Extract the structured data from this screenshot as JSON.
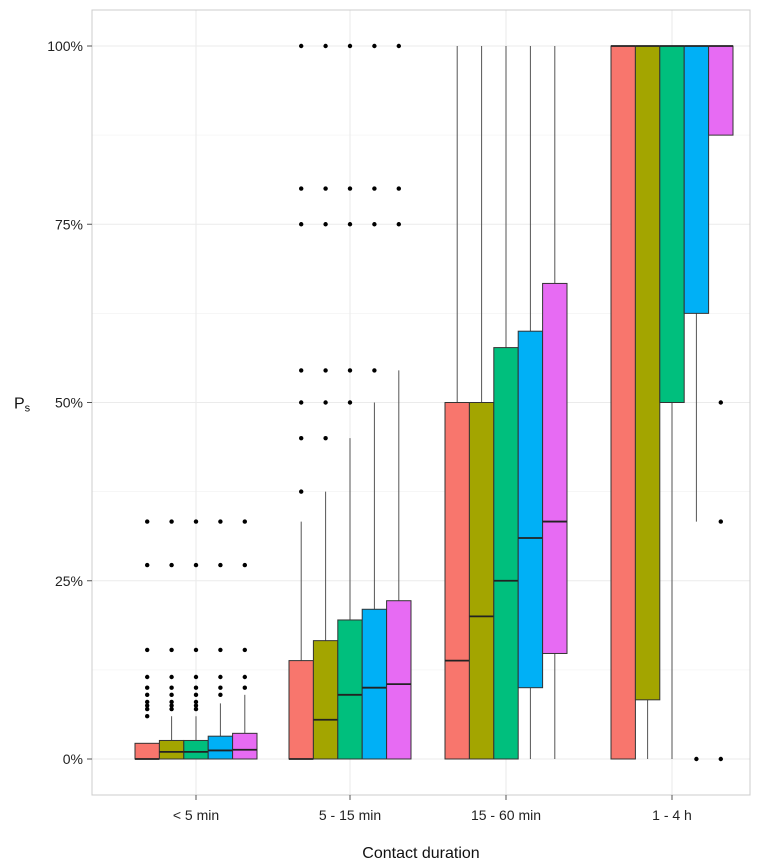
{
  "chart_data": {
    "type": "boxplot",
    "xlabel": "Contact duration",
    "ylabel": "P",
    "ylabel_subscript": "s",
    "y_ticks": [
      0,
      0.25,
      0.5,
      0.75,
      1.0
    ],
    "y_tick_labels": [
      "0%",
      "25%",
      "50%",
      "75%",
      "100%"
    ],
    "ylim": [
      -0.05,
      1.05
    ],
    "grid": true,
    "categories": [
      "< 5 min",
      "5 - 15 min",
      "15 - 60 min",
      "1 - 4 h"
    ],
    "group_colors": [
      "#F8766D",
      "#A3A500",
      "#00BF7D",
      "#00B0F6",
      "#E76BF3"
    ],
    "groups": [
      {
        "category": "< 5 min",
        "boxes": [
          {
            "q1": 0.0,
            "median": 0.0,
            "q3": 0.022,
            "whisker_low": 0.0,
            "whisker_high": 0.022,
            "outliers": [
              0.06,
              0.07,
              0.075,
              0.08,
              0.09,
              0.1,
              0.115,
              0.153,
              0.272,
              0.333
            ]
          },
          {
            "q1": 0.0,
            "median": 0.01,
            "q3": 0.026,
            "whisker_low": 0.0,
            "whisker_high": 0.06,
            "outliers": [
              0.07,
              0.075,
              0.08,
              0.09,
              0.1,
              0.115,
              0.153,
              0.272,
              0.333
            ]
          },
          {
            "q1": 0.0,
            "median": 0.01,
            "q3": 0.026,
            "whisker_low": 0.0,
            "whisker_high": 0.06,
            "outliers": [
              0.07,
              0.075,
              0.08,
              0.09,
              0.1,
              0.115,
              0.153,
              0.272,
              0.333
            ]
          },
          {
            "q1": 0.0,
            "median": 0.012,
            "q3": 0.032,
            "whisker_low": 0.0,
            "whisker_high": 0.078,
            "outliers": [
              0.09,
              0.1,
              0.115,
              0.153,
              0.272,
              0.333
            ]
          },
          {
            "q1": 0.0,
            "median": 0.013,
            "q3": 0.036,
            "whisker_low": 0.0,
            "whisker_high": 0.09,
            "outliers": [
              0.1,
              0.115,
              0.153,
              0.272,
              0.333
            ]
          }
        ]
      },
      {
        "category": "5 - 15 min",
        "boxes": [
          {
            "q1": 0.0,
            "median": 0.0,
            "q3": 0.138,
            "whisker_low": 0.0,
            "whisker_high": 0.333,
            "outliers": [
              0.375,
              0.45,
              0.5,
              0.545,
              0.75,
              0.8,
              1.0
            ]
          },
          {
            "q1": 0.0,
            "median": 0.055,
            "q3": 0.166,
            "whisker_low": 0.0,
            "whisker_high": 0.375,
            "outliers": [
              0.45,
              0.5,
              0.545,
              0.75,
              0.8,
              1.0
            ]
          },
          {
            "q1": 0.0,
            "median": 0.09,
            "q3": 0.195,
            "whisker_low": 0.0,
            "whisker_high": 0.45,
            "outliers": [
              0.5,
              0.545,
              0.75,
              0.8,
              1.0
            ]
          },
          {
            "q1": 0.0,
            "median": 0.1,
            "q3": 0.21,
            "whisker_low": 0.0,
            "whisker_high": 0.5,
            "outliers": [
              0.545,
              0.75,
              0.8,
              1.0
            ]
          },
          {
            "q1": 0.0,
            "median": 0.105,
            "q3": 0.222,
            "whisker_low": 0.0,
            "whisker_high": 0.545,
            "outliers": [
              0.75,
              0.8,
              1.0
            ]
          }
        ]
      },
      {
        "category": "15 - 60 min",
        "boxes": [
          {
            "q1": 0.0,
            "median": 0.138,
            "q3": 0.5,
            "whisker_low": 0.0,
            "whisker_high": 1.0,
            "outliers": []
          },
          {
            "q1": 0.0,
            "median": 0.2,
            "q3": 0.5,
            "whisker_low": 0.0,
            "whisker_high": 1.0,
            "outliers": []
          },
          {
            "q1": 0.0,
            "median": 0.25,
            "q3": 0.577,
            "whisker_low": 0.0,
            "whisker_high": 1.0,
            "outliers": []
          },
          {
            "q1": 0.1,
            "median": 0.31,
            "q3": 0.6,
            "whisker_low": 0.0,
            "whisker_high": 1.0,
            "outliers": []
          },
          {
            "q1": 0.148,
            "median": 0.333,
            "q3": 0.667,
            "whisker_low": 0.0,
            "whisker_high": 1.0,
            "outliers": []
          }
        ]
      },
      {
        "category": "1 - 4 h",
        "boxes": [
          {
            "q1": 0.0,
            "median": 1.0,
            "q3": 1.0,
            "whisker_low": 0.0,
            "whisker_high": 1.0,
            "outliers": []
          },
          {
            "q1": 0.083,
            "median": 1.0,
            "q3": 1.0,
            "whisker_low": 0.0,
            "whisker_high": 1.0,
            "outliers": []
          },
          {
            "q1": 0.5,
            "median": 1.0,
            "q3": 1.0,
            "whisker_low": 0.0,
            "whisker_high": 1.0,
            "outliers": []
          },
          {
            "q1": 0.625,
            "median": 1.0,
            "q3": 1.0,
            "whisker_low": 0.333,
            "whisker_high": 1.0,
            "outliers": [
              0.0
            ]
          },
          {
            "q1": 0.875,
            "median": 1.0,
            "q3": 1.0,
            "whisker_low": 0.875,
            "whisker_high": 1.0,
            "outliers": [
              0.0,
              0.333,
              0.5
            ]
          }
        ]
      }
    ]
  }
}
